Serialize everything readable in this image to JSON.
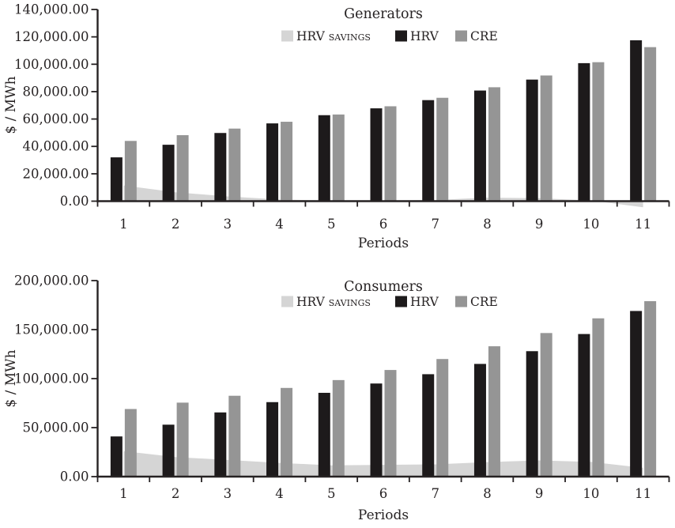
{
  "figure": {
    "background": "#ffffff"
  },
  "colors": {
    "hrv_savings": "#d5d5d5",
    "hrv": "#1d1a1b",
    "cre": "#959595",
    "axis": "#262223",
    "text": "#262223"
  },
  "chart_data": [
    {
      "type": "bar",
      "title": "Generators",
      "xlabel": "Periods",
      "ylabel": "$ / MWh",
      "categories": [
        "1",
        "2",
        "3",
        "4",
        "5",
        "6",
        "7",
        "8",
        "9",
        "10",
        "11"
      ],
      "ylim": [
        0,
        140000
      ],
      "ytick_step": 20000,
      "yticks": [
        "0.00",
        "20,000.00",
        "40,000.00",
        "60,000.00",
        "80,000.00",
        "100,000.00",
        "120,000.00",
        "140,000.00"
      ],
      "grid": false,
      "legend_position": "top-center",
      "legend": [
        "HRV savings",
        "HRV",
        "CRE"
      ],
      "series": [
        {
          "name": "HRV savings",
          "type": "area",
          "color_key": "hrv_savings",
          "values": [
            11500,
            6500,
            3500,
            1200,
            400,
            400,
            900,
            2600,
            2200,
            500,
            -4500
          ]
        },
        {
          "name": "HRV",
          "type": "bar",
          "color_key": "hrv",
          "values": [
            32000,
            41200,
            49800,
            56800,
            62800,
            67800,
            73800,
            80800,
            88800,
            100800,
            117500
          ]
        },
        {
          "name": "CRE",
          "type": "bar",
          "color_key": "cre",
          "values": [
            44000,
            48200,
            53000,
            58000,
            63300,
            69300,
            75500,
            83200,
            91800,
            101500,
            112500
          ]
        }
      ]
    },
    {
      "type": "bar",
      "title": "Consumers",
      "xlabel": "Periods",
      "ylabel": "$ / MWh",
      "categories": [
        "1",
        "2",
        "3",
        "4",
        "5",
        "6",
        "7",
        "8",
        "9",
        "10",
        "11"
      ],
      "ylim": [
        0,
        200000
      ],
      "ytick_step": 50000,
      "yticks": [
        "0.00",
        "50,000.00",
        "100,000.00",
        "150,000.00",
        "200,000.00"
      ],
      "grid": false,
      "legend_position": "top-center",
      "legend": [
        "HRV savings",
        "HRV",
        "CRE"
      ],
      "series": [
        {
          "name": "HRV savings",
          "type": "area",
          "color_key": "hrv_savings",
          "values": [
            26000,
            20000,
            17000,
            14000,
            11500,
            12000,
            12500,
            14800,
            16500,
            15000,
            9000
          ]
        },
        {
          "name": "HRV",
          "type": "bar",
          "color_key": "hrv",
          "values": [
            41000,
            53000,
            65500,
            76000,
            85500,
            95000,
            104500,
            115000,
            128000,
            145500,
            169000
          ]
        },
        {
          "name": "CRE",
          "type": "bar",
          "color_key": "cre",
          "values": [
            69000,
            75500,
            82500,
            90500,
            98500,
            108800,
            120000,
            133000,
            146500,
            161500,
            179000
          ]
        }
      ]
    }
  ]
}
